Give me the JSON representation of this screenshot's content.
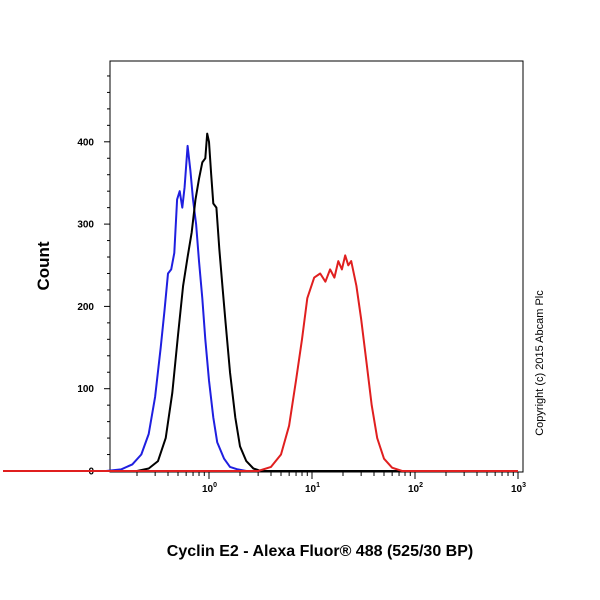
{
  "chart_data": {
    "type": "line",
    "xlabel": "Cyclin E2 - Alexa Fluor® 488 (525/30 BP)",
    "ylabel": "Count",
    "x_scale": "log",
    "xlim": [
      0.01,
      1000
    ],
    "ylim": [
      0,
      500
    ],
    "x_ticks": [
      {
        "value": 1,
        "base": "10",
        "exp": "0"
      },
      {
        "value": 10,
        "base": "10",
        "exp": "1"
      },
      {
        "value": 100,
        "base": "10",
        "exp": "2"
      },
      {
        "value": 1000,
        "base": "10",
        "exp": "3"
      }
    ],
    "y_ticks": [
      "0",
      "100",
      "200",
      "300",
      "400"
    ],
    "y_tick_values": [
      0,
      100,
      200,
      300,
      400
    ],
    "grid": false,
    "series": [
      {
        "color": "#1f1fe0",
        "x": [
          0.1,
          0.14,
          0.18,
          0.22,
          0.26,
          0.3,
          0.34,
          0.37,
          0.4,
          0.43,
          0.46,
          0.49,
          0.52,
          0.55,
          0.58,
          0.62,
          0.66,
          0.7,
          0.75,
          0.8,
          0.86,
          0.92,
          1.0,
          1.1,
          1.2,
          1.4,
          1.6,
          1.9,
          2.3
        ],
        "values": [
          0,
          2,
          8,
          20,
          45,
          90,
          150,
          195,
          240,
          245,
          265,
          330,
          340,
          320,
          345,
          395,
          365,
          330,
          300,
          255,
          210,
          160,
          110,
          65,
          35,
          15,
          5,
          2,
          0
        ]
      },
      {
        "color": "#000000",
        "x": [
          0.2,
          0.26,
          0.32,
          0.38,
          0.44,
          0.5,
          0.56,
          0.62,
          0.68,
          0.74,
          0.8,
          0.86,
          0.92,
          0.96,
          1.0,
          1.05,
          1.1,
          1.18,
          1.26,
          1.35,
          1.45,
          1.6,
          1.8,
          2.0,
          2.3,
          2.7,
          3.2
        ],
        "values": [
          0,
          3,
          12,
          40,
          95,
          165,
          225,
          260,
          290,
          330,
          355,
          375,
          380,
          410,
          400,
          360,
          325,
          320,
          270,
          225,
          180,
          120,
          65,
          30,
          12,
          3,
          0
        ]
      },
      {
        "color": "#e01f1f",
        "x": [
          3.0,
          4.0,
          5.0,
          6.0,
          7.0,
          8.0,
          9.0,
          10.5,
          12,
          13.5,
          15,
          16.5,
          18,
          19.5,
          21,
          22.5,
          24,
          27,
          30,
          34,
          38,
          43,
          50,
          60,
          75
        ],
        "values": [
          0,
          5,
          20,
          55,
          110,
          160,
          210,
          235,
          240,
          230,
          245,
          235,
          255,
          245,
          262,
          250,
          255,
          225,
          185,
          130,
          80,
          40,
          15,
          4,
          0
        ]
      }
    ]
  },
  "annotations": {
    "copyright": "Copyright (c) 2015 Abcam Plc"
  }
}
